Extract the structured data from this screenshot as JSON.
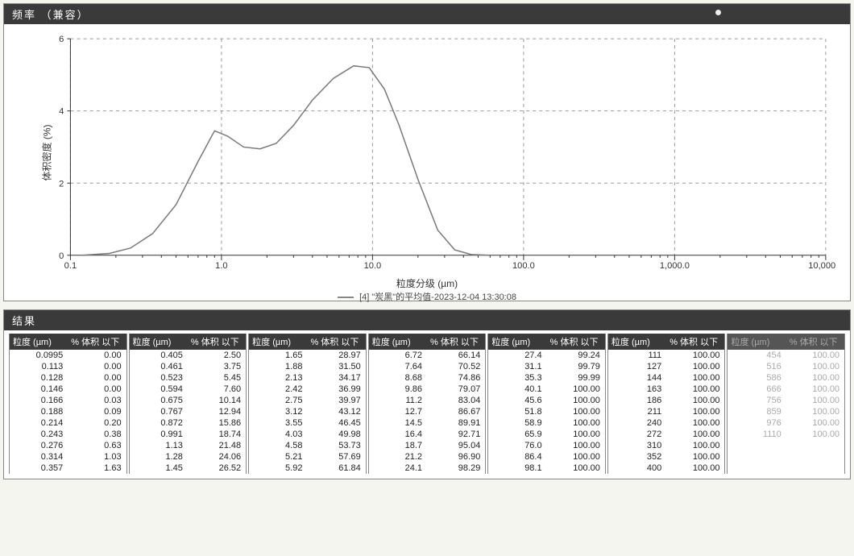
{
  "chart": {
    "panel_title": "频率 （兼容）",
    "type": "line",
    "x_scale": "log",
    "xlim": [
      0.1,
      10000
    ],
    "ylim": [
      0,
      6
    ],
    "x_ticks": [
      0.1,
      1.0,
      10.0,
      100.0,
      1000.0,
      10000.0
    ],
    "x_tick_labels": [
      "0.1",
      "1.0",
      "10.0",
      "100.0",
      "1,000.0",
      "10,000.0"
    ],
    "y_ticks": [
      0,
      2,
      4,
      6
    ],
    "y_major_grid": [
      2,
      4,
      6
    ],
    "grid_color": "#999999",
    "grid_dash": "4,4",
    "axis_color": "#333333",
    "line_color": "#7a7a7a",
    "line_width": 1.5,
    "background_color": "#ffffff",
    "ylabel": "体积密度 (%)",
    "xlabel": "粒度分级 (µm)",
    "legend_text": "[4] \"炭黑\"的平均值-2023-12-04 13:30:08",
    "series_x": [
      0.12,
      0.18,
      0.25,
      0.35,
      0.5,
      0.7,
      0.9,
      1.1,
      1.4,
      1.8,
      2.3,
      3.0,
      4.0,
      5.5,
      7.5,
      9.5,
      12,
      15,
      20,
      27,
      35,
      45,
      60
    ],
    "series_y": [
      0.0,
      0.05,
      0.2,
      0.6,
      1.4,
      2.6,
      3.45,
      3.3,
      3.0,
      2.95,
      3.1,
      3.6,
      4.3,
      4.9,
      5.25,
      5.2,
      4.6,
      3.6,
      2.1,
      0.7,
      0.15,
      0.02,
      0.0
    ]
  },
  "table": {
    "panel_title": "结果",
    "header_a": "粒度 (µm)",
    "header_b": "% 体积 以下",
    "header_bg": "#3a3a3a",
    "header_fg": "#ffffff",
    "groups": [
      {
        "rows": [
          [
            "0.0995",
            "0.00"
          ],
          [
            "0.113",
            "0.00"
          ],
          [
            "0.128",
            "0.00"
          ],
          [
            "0.146",
            "0.00"
          ],
          [
            "0.166",
            "0.03"
          ],
          [
            "0.188",
            "0.09"
          ],
          [
            "0.214",
            "0.20"
          ],
          [
            "0.243",
            "0.38"
          ],
          [
            "0.276",
            "0.63"
          ],
          [
            "0.314",
            "1.03"
          ],
          [
            "0.357",
            "1.63"
          ]
        ]
      },
      {
        "rows": [
          [
            "0.405",
            "2.50"
          ],
          [
            "0.461",
            "3.75"
          ],
          [
            "0.523",
            "5.45"
          ],
          [
            "0.594",
            "7.60"
          ],
          [
            "0.675",
            "10.14"
          ],
          [
            "0.767",
            "12.94"
          ],
          [
            "0.872",
            "15.86"
          ],
          [
            "0.991",
            "18.74"
          ],
          [
            "1.13",
            "21.48"
          ],
          [
            "1.28",
            "24.06"
          ],
          [
            "1.45",
            "26.52"
          ]
        ]
      },
      {
        "rows": [
          [
            "1.65",
            "28.97"
          ],
          [
            "1.88",
            "31.50"
          ],
          [
            "2.13",
            "34.17"
          ],
          [
            "2.42",
            "36.99"
          ],
          [
            "2.75",
            "39.97"
          ],
          [
            "3.12",
            "43.12"
          ],
          [
            "3.55",
            "46.45"
          ],
          [
            "4.03",
            "49.98"
          ],
          [
            "4.58",
            "53.73"
          ],
          [
            "5.21",
            "57.69"
          ],
          [
            "5.92",
            "61.84"
          ]
        ]
      },
      {
        "rows": [
          [
            "6.72",
            "66.14"
          ],
          [
            "7.64",
            "70.52"
          ],
          [
            "8.68",
            "74.86"
          ],
          [
            "9.86",
            "79.07"
          ],
          [
            "11.2",
            "83.04"
          ],
          [
            "12.7",
            "86.67"
          ],
          [
            "14.5",
            "89.91"
          ],
          [
            "16.4",
            "92.71"
          ],
          [
            "18.7",
            "95.04"
          ],
          [
            "21.2",
            "96.90"
          ],
          [
            "24.1",
            "98.29"
          ]
        ]
      },
      {
        "rows": [
          [
            "27.4",
            "99.24"
          ],
          [
            "31.1",
            "99.79"
          ],
          [
            "35.3",
            "99.99"
          ],
          [
            "40.1",
            "100.00"
          ],
          [
            "45.6",
            "100.00"
          ],
          [
            "51.8",
            "100.00"
          ],
          [
            "58.9",
            "100.00"
          ],
          [
            "65.9",
            "100.00"
          ],
          [
            "76.0",
            "100.00"
          ],
          [
            "86.4",
            "100.00"
          ],
          [
            "98.1",
            "100.00"
          ]
        ]
      },
      {
        "rows": [
          [
            "111",
            "100.00"
          ],
          [
            "127",
            "100.00"
          ],
          [
            "144",
            "100.00"
          ],
          [
            "163",
            "100.00"
          ],
          [
            "186",
            "100.00"
          ],
          [
            "211",
            "100.00"
          ],
          [
            "240",
            "100.00"
          ],
          [
            "272",
            "100.00"
          ],
          [
            "310",
            "100.00"
          ],
          [
            "352",
            "100.00"
          ],
          [
            "400",
            "100.00"
          ]
        ]
      },
      {
        "faded": true,
        "rows": [
          [
            "454",
            "100.00"
          ],
          [
            "516",
            "100.00"
          ],
          [
            "586",
            "100.00"
          ],
          [
            "666",
            "100.00"
          ],
          [
            "756",
            "100.00"
          ],
          [
            "859",
            "100.00"
          ],
          [
            "976",
            "100.00"
          ],
          [
            "1110",
            "100.00"
          ]
        ]
      }
    ]
  }
}
